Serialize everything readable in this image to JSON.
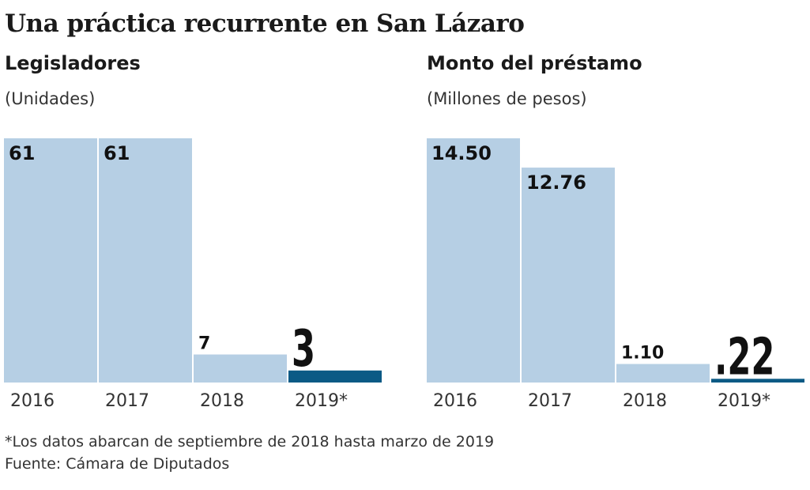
{
  "title": "Una práctica recurrente en San Lázaro",
  "chart_data": [
    {
      "type": "bar",
      "title": "Legisladores",
      "subtitle": "(Unidades)",
      "categories": [
        "2016",
        "2017",
        "2018",
        "2019*"
      ],
      "values": [
        61,
        61,
        7,
        3
      ],
      "labels": [
        "61",
        "61",
        "7",
        "3"
      ],
      "colors": [
        "#b6cfe4",
        "#b6cfe4",
        "#b6cfe4",
        "#0b5a85"
      ],
      "ylim": [
        0,
        61
      ],
      "grid": false
    },
    {
      "type": "bar",
      "title": "Monto del préstamo",
      "subtitle": "(Millones de pesos)",
      "categories": [
        "2016",
        "2017",
        "2018",
        "2019*"
      ],
      "values": [
        14.5,
        12.76,
        1.1,
        0.22
      ],
      "labels": [
        "14.50",
        "12.76",
        "1.10",
        ".22"
      ],
      "colors": [
        "#b6cfe4",
        "#b6cfe4",
        "#b6cfe4",
        "#0b5a85"
      ],
      "ylim": [
        0,
        14.5
      ],
      "grid": false
    }
  ],
  "footnote": "*Los datos abarcan de septiembre de 2018 hasta marzo de 2019",
  "source": "Fuente: Cámara de Diputados"
}
